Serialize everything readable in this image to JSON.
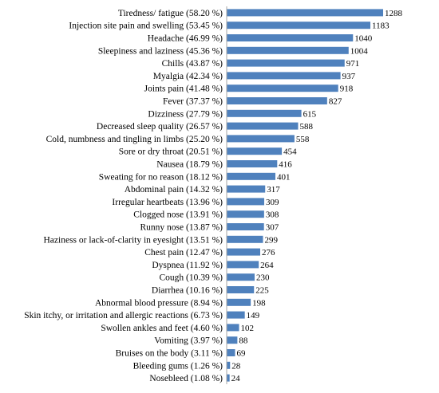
{
  "chart_data": {
    "type": "bar",
    "orientation": "horizontal",
    "categories": [
      "Tiredness/ fatigue (58.20 %)",
      "Injection site pain and swelling (53.45 %)",
      "Headache (46.99 %)",
      "Sleepiness and laziness (45.36 %)",
      "Chills (43.87 %)",
      "Myalgia (42.34 %)",
      "Joints pain (41.48 %)",
      "Fever (37.37 %)",
      "Dizziness (27.79 %)",
      "Decreased sleep quality (26.57 %)",
      "Cold, numbness and tingling in limbs (25.20 %)",
      "Sore or dry throat (20.51 %)",
      "Nausea (18.79 %)",
      "Sweating for no reason (18.12 %)",
      "Abdominal pain (14.32 %)",
      "Irregular heartbeats (13.96 %)",
      "Clogged nose (13.91 %)",
      "Runny nose (13.87 %)",
      "Haziness or lack-of-clarity in eyesight (13.51 %)",
      "Chest pain (12.47 %)",
      "Dyspnea (11.92 %)",
      "Cough (10.39 %)",
      "Diarrhea (10.16 %)",
      "Abnormal blood pressure (8.94 %)",
      "Skin itchy, or irritation and allergic reactions (6.73 %)",
      "Swollen ankles and feet (4.60 %)",
      "Vomiting (3.97 %)",
      "Bruises on the body (3.11 %)",
      "Bleeding gums (1.26 %)",
      "Nosebleed (1.08 %)"
    ],
    "values": [
      1288,
      1183,
      1040,
      1004,
      971,
      937,
      918,
      827,
      615,
      588,
      558,
      454,
      416,
      401,
      317,
      309,
      308,
      307,
      299,
      276,
      264,
      230,
      225,
      198,
      149,
      102,
      88,
      69,
      28,
      24
    ],
    "xlim": [
      0,
      1288
    ],
    "bar_color": "#4f81bd",
    "axis_color": "#a6a6a6",
    "grid": false,
    "legend": "none"
  }
}
